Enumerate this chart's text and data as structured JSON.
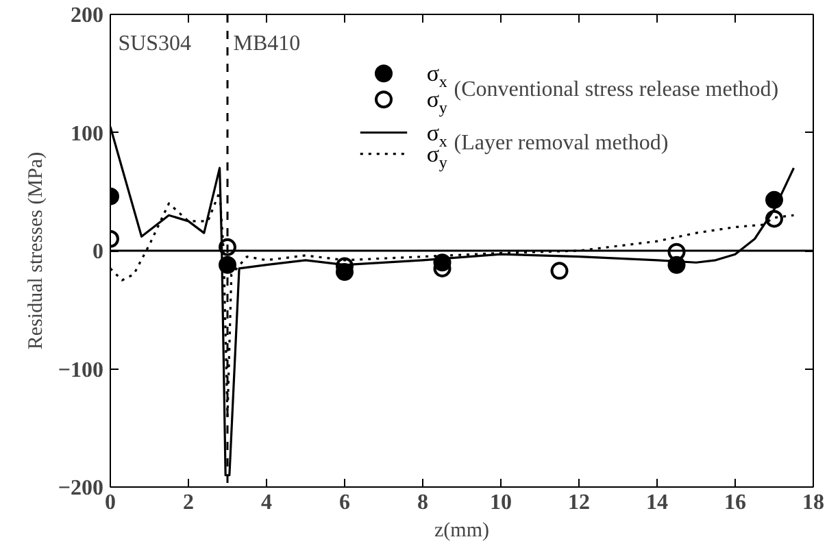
{
  "chart_data": {
    "type": "line",
    "xlabel": "z(mm)",
    "ylabel": "Residual stresses (MPa)",
    "xlim": [
      0,
      18
    ],
    "ylim": [
      -200,
      200
    ],
    "xticks": [
      0,
      2,
      4,
      6,
      8,
      10,
      12,
      14,
      16,
      18
    ],
    "yticks": [
      -200,
      -100,
      0,
      100,
      200
    ],
    "grid": false,
    "legend": "top",
    "series": [
      {
        "name": "σ$_{x}$",
        "type": "scatter",
        "marker": "circle",
        "color": "#000000",
        "x": [
          0,
          3,
          6,
          8.5,
          14.5,
          17
        ],
        "values": [
          46,
          -12,
          -18,
          -10,
          -12,
          43
        ]
      },
      {
        "name": "σ$_{y}$",
        "type": "scatter",
        "marker": "circle_open",
        "color": "#000000",
        "x": [
          0,
          3,
          6,
          8.5,
          11.5,
          14.5,
          17
        ],
        "values": [
          10,
          3,
          -13,
          -15,
          -17,
          -1,
          27
        ]
      },
      {
        "name": "σ$_{x}$",
        "line_style": "solid",
        "color": "#000000",
        "x": [
          0,
          0.3,
          0.8,
          1.5,
          2,
          2.4,
          2.8,
          2.85,
          2.95,
          3.05,
          3.3,
          4,
          5,
          6,
          8,
          10,
          12,
          14,
          15,
          15.5,
          16,
          16.5,
          17,
          17.5
        ],
        "values": [
          105,
          70,
          12,
          30,
          25,
          15,
          70,
          10,
          -190,
          -190,
          -15,
          -12,
          -8,
          -12,
          -8,
          -3,
          -5,
          -8,
          -10,
          -8,
          -3,
          10,
          35,
          70
        ]
      },
      {
        "name": "σ$_{y}$",
        "line_style": "dotted",
        "color": "#000000",
        "x": [
          0,
          0.3,
          0.6,
          1,
          1.5,
          2,
          2.5,
          2.8,
          2.9,
          3,
          3.1,
          3.5,
          4,
          5,
          6,
          8,
          10,
          12,
          14,
          15,
          16,
          16.7,
          17,
          17.5
        ],
        "values": [
          -15,
          -25,
          -20,
          5,
          40,
          25,
          25,
          50,
          0,
          -140,
          -20,
          -5,
          -8,
          -4,
          -8,
          -5,
          -2,
          0,
          8,
          15,
          20,
          22,
          28,
          30
        ]
      }
    ],
    "ref_lines": [
      {
        "axis": "x",
        "value": 3,
        "line_style": "dashed",
        "color": "#000000"
      },
      {
        "axis": "y",
        "value": 0,
        "line_style": "solid",
        "color": "#000000"
      }
    ],
    "annotations": [
      "SUS304",
      "MB410",
      "(Conventional stress release method)",
      "(Layer removal method)"
    ]
  }
}
